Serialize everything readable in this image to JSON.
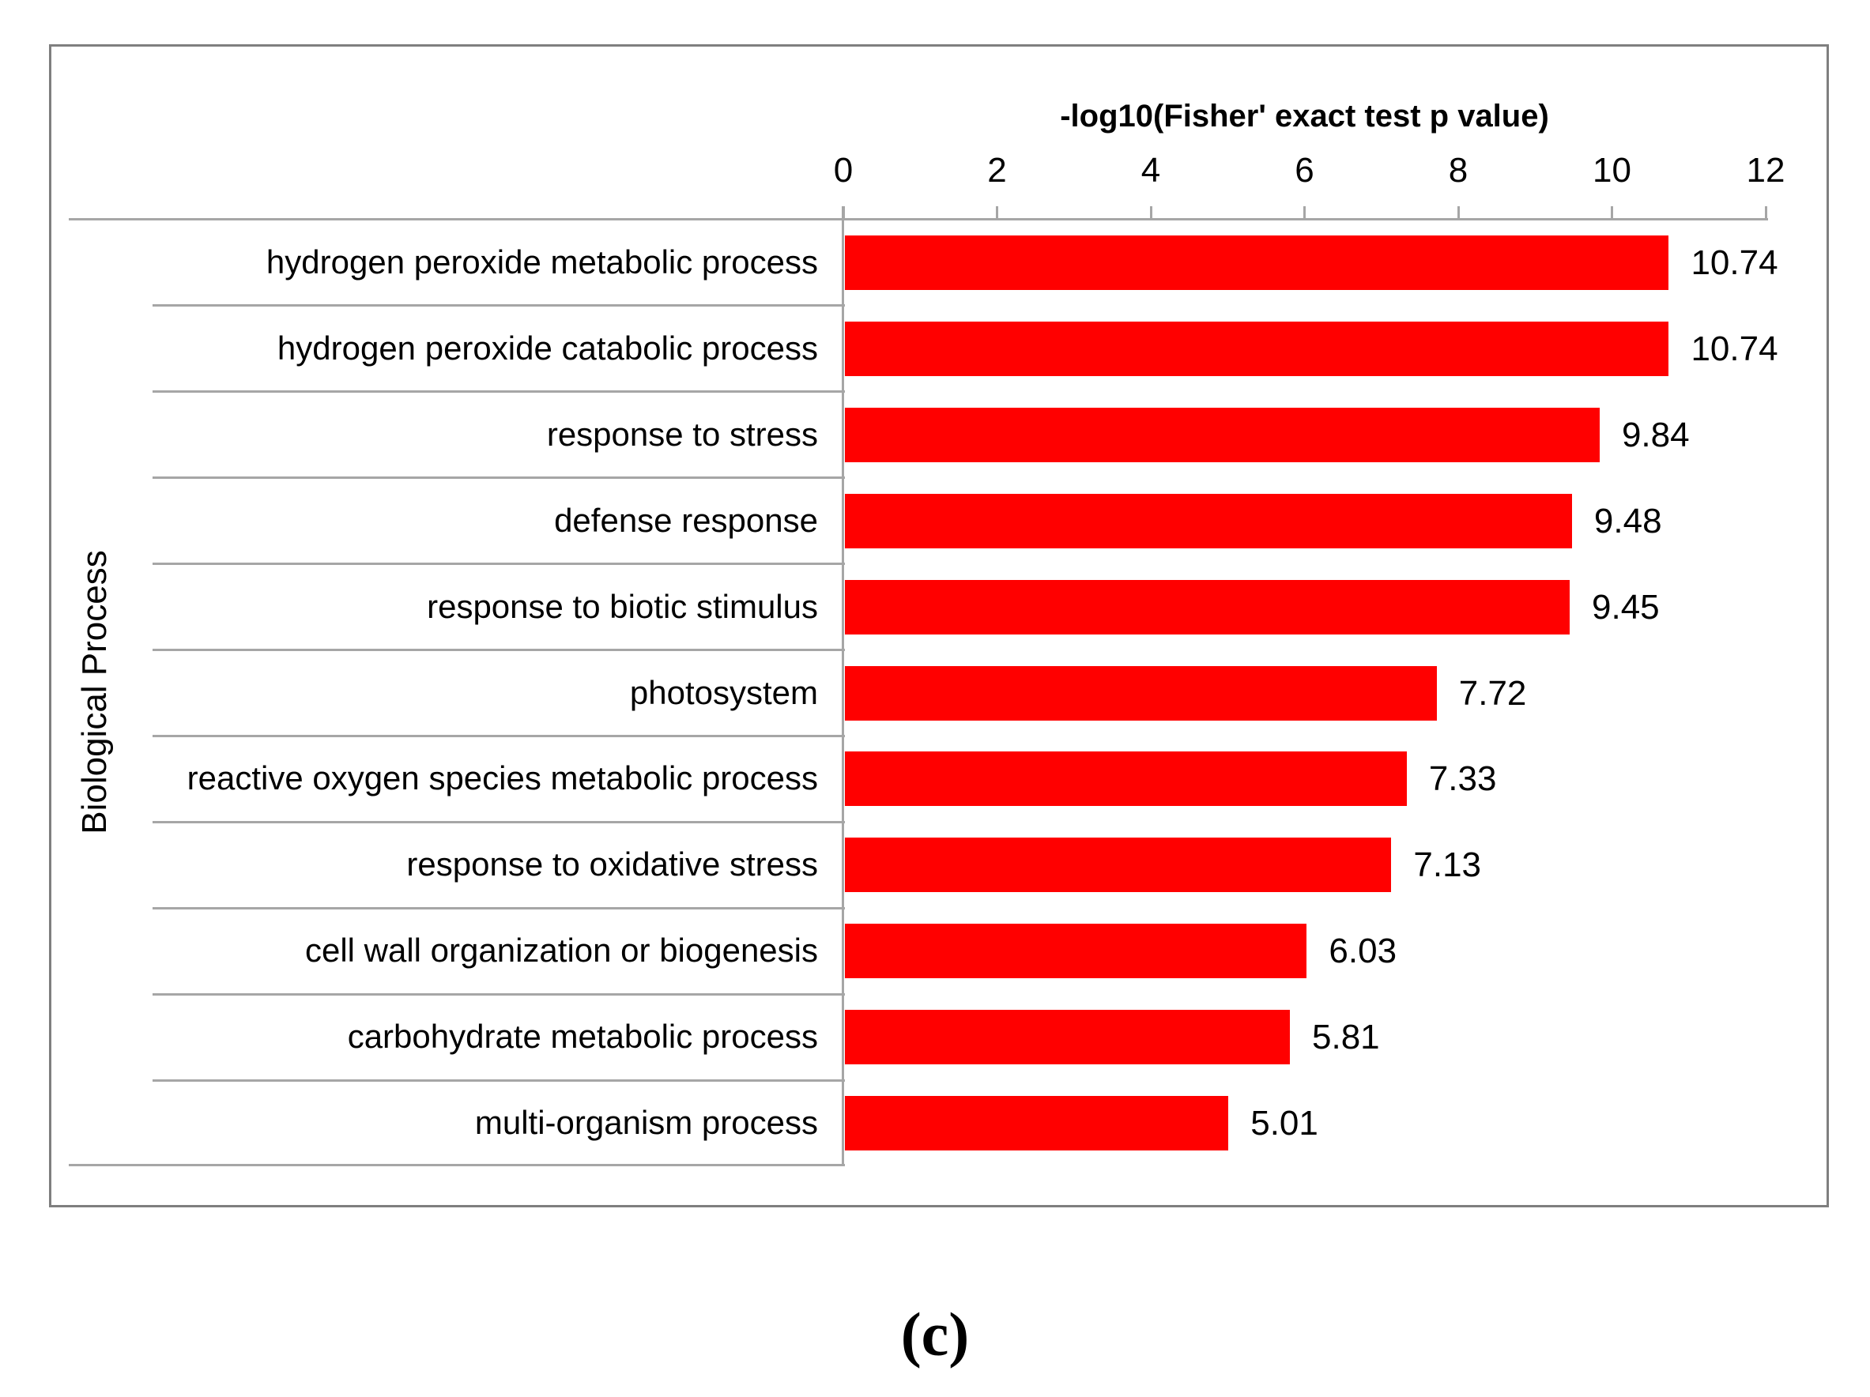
{
  "figure": {
    "caption": "(c)"
  },
  "chart_data": {
    "type": "bar",
    "orientation": "horizontal",
    "title": "-log10(Fisher' exact test p value)",
    "xlabel": "-log10(Fisher' exact test p value)",
    "ylabel": "Biological Process",
    "categories": [
      "hydrogen peroxide metabolic process",
      "hydrogen peroxide catabolic process",
      "response to stress",
      "defense response",
      "response to biotic stimulus",
      "photosystem",
      "reactive oxygen species metabolic process",
      "response to oxidative stress",
      "cell wall organization or biogenesis",
      "carbohydrate metabolic process",
      "multi-organism process"
    ],
    "values": [
      10.74,
      10.74,
      9.84,
      9.48,
      9.45,
      7.72,
      7.33,
      7.13,
      6.03,
      5.81,
      5.01
    ],
    "value_labels": [
      "10.74",
      "10.74",
      "9.84",
      "9.48",
      "9.45",
      "7.72",
      "7.33",
      "7.13",
      "6.03",
      "5.81",
      "5.01"
    ],
    "x_ticks": [
      0,
      2,
      4,
      6,
      8,
      10,
      12
    ],
    "xlim": [
      0,
      12
    ],
    "grid": false,
    "legend": false,
    "data_labels": true,
    "bar_color": "#ff0000",
    "axis_line_color": "#a6a6a6",
    "border_color": "#7f7f7f",
    "text_color": "#000000"
  }
}
